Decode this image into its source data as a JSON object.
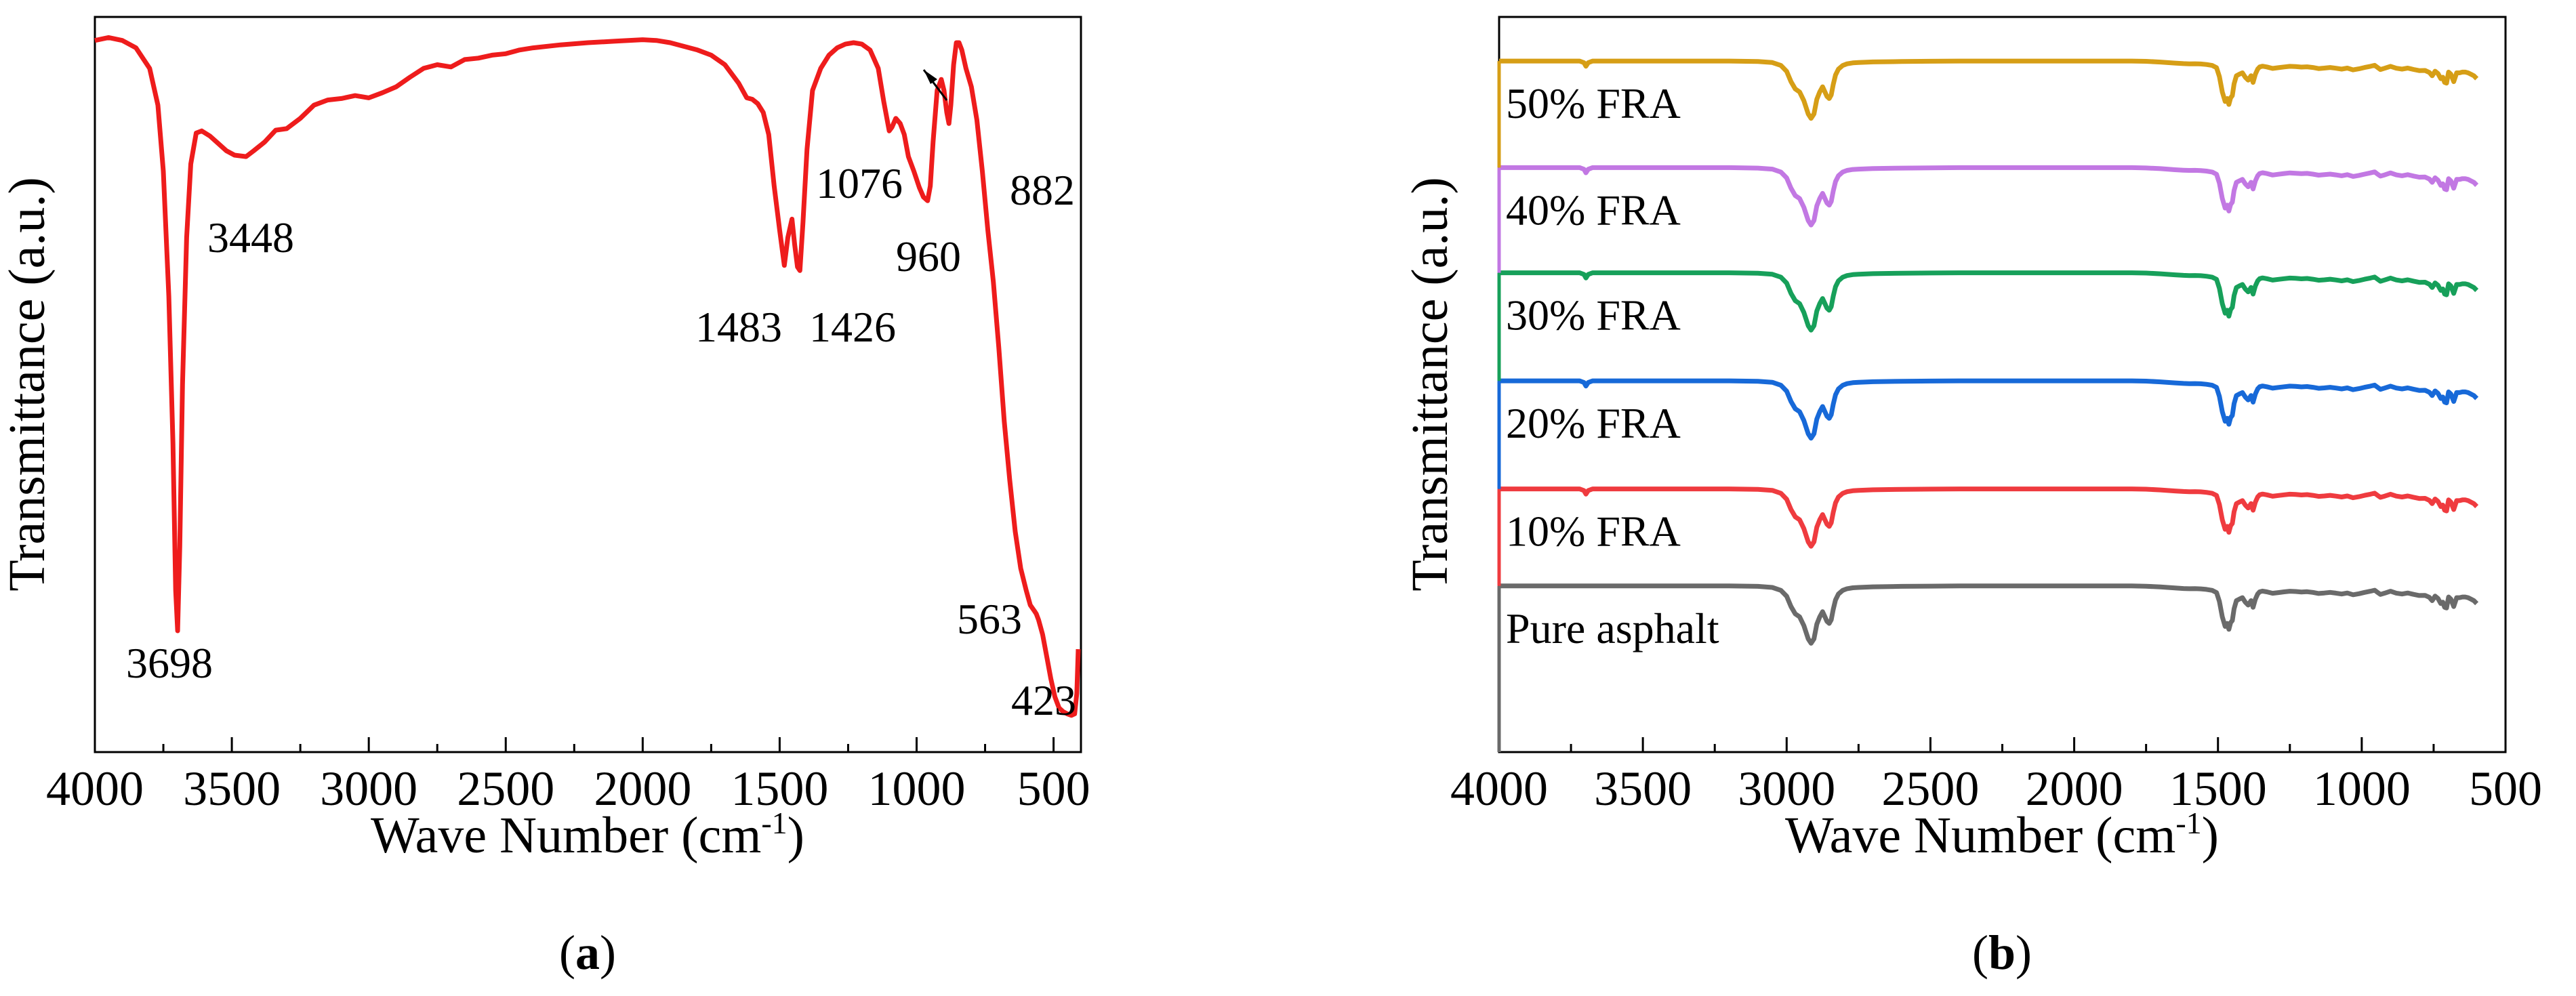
{
  "chart_data": [
    {
      "panel": "a",
      "type": "line",
      "caption": "(a)",
      "caption_letter": "a",
      "xlabel": "Wave Number (cm",
      "xlabel_sup": "-1",
      "xlabel_close": ")",
      "ylabel": "Transmittance (a.u.)",
      "xlim": [
        4000,
        400
      ],
      "ylim": [
        0,
        1
      ],
      "x_ticks": [
        4000,
        3500,
        3000,
        2500,
        2000,
        1500,
        1000,
        500
      ],
      "x_tick_labels": [
        "4000",
        "3500",
        "3000",
        "2500",
        "2000",
        "1500",
        "1000",
        "500"
      ],
      "y_ticks_shown": false,
      "series": [
        {
          "name": "FRA",
          "color": "#ee1c1c",
          "x": [
            4000,
            3950,
            3900,
            3850,
            3800,
            3770,
            3750,
            3730,
            3715,
            3705,
            3698,
            3690,
            3680,
            3665,
            3650,
            3630,
            3610,
            3580,
            3550,
            3520,
            3490,
            3448,
            3420,
            3380,
            3340,
            3300,
            3250,
            3200,
            3150,
            3100,
            3050,
            3000,
            2950,
            2900,
            2850,
            2800,
            2750,
            2700,
            2650,
            2600,
            2550,
            2500,
            2450,
            2400,
            2300,
            2200,
            2100,
            2000,
            1950,
            1900,
            1850,
            1800,
            1750,
            1700,
            1650,
            1620,
            1600,
            1580,
            1560,
            1540,
            1520,
            1500,
            1483,
            1470,
            1455,
            1445,
            1435,
            1426,
            1415,
            1400,
            1380,
            1350,
            1320,
            1290,
            1260,
            1230,
            1200,
            1170,
            1140,
            1120,
            1100,
            1090,
            1076,
            1060,
            1045,
            1030,
            1010,
            990,
            975,
            960,
            950,
            940,
            925,
            910,
            900,
            890,
            882,
            875,
            865,
            855,
            845,
            835,
            820,
            800,
            780,
            760,
            740,
            720,
            700,
            680,
            660,
            640,
            620,
            600,
            585,
            570,
            563,
            555,
            540,
            525,
            510,
            495,
            480,
            465,
            450,
            435,
            423,
            415,
            410
          ],
          "y": [
            0.968,
            0.972,
            0.968,
            0.958,
            0.93,
            0.88,
            0.79,
            0.62,
            0.42,
            0.22,
            0.165,
            0.28,
            0.5,
            0.7,
            0.8,
            0.842,
            0.845,
            0.838,
            0.828,
            0.818,
            0.812,
            0.81,
            0.818,
            0.83,
            0.846,
            0.848,
            0.862,
            0.88,
            0.887,
            0.889,
            0.893,
            0.89,
            0.897,
            0.905,
            0.918,
            0.93,
            0.935,
            0.932,
            0.942,
            0.944,
            0.948,
            0.95,
            0.955,
            0.958,
            0.962,
            0.965,
            0.967,
            0.969,
            0.968,
            0.965,
            0.96,
            0.955,
            0.948,
            0.935,
            0.91,
            0.89,
            0.888,
            0.882,
            0.87,
            0.84,
            0.77,
            0.71,
            0.662,
            0.7,
            0.725,
            0.69,
            0.66,
            0.655,
            0.72,
            0.82,
            0.9,
            0.93,
            0.948,
            0.958,
            0.963,
            0.965,
            0.963,
            0.955,
            0.93,
            0.885,
            0.845,
            0.85,
            0.862,
            0.855,
            0.84,
            0.81,
            0.79,
            0.768,
            0.755,
            0.75,
            0.77,
            0.83,
            0.9,
            0.915,
            0.9,
            0.87,
            0.855,
            0.88,
            0.935,
            0.965,
            0.965,
            0.955,
            0.93,
            0.905,
            0.86,
            0.79,
            0.71,
            0.64,
            0.55,
            0.45,
            0.37,
            0.3,
            0.25,
            0.22,
            0.2,
            0.192,
            0.188,
            0.18,
            0.16,
            0.13,
            0.1,
            0.075,
            0.06,
            0.055,
            0.052,
            0.05,
            0.052,
            0.08,
            0.14
          ]
        }
      ],
      "annotations": [
        {
          "text": "3698"
        },
        {
          "text": "3448"
        },
        {
          "text": "1483"
        },
        {
          "text": "1426"
        },
        {
          "text": "1076"
        },
        {
          "text": "960"
        },
        {
          "text": "882"
        },
        {
          "text": "563"
        },
        {
          "text": "423"
        }
      ]
    },
    {
      "panel": "b",
      "type": "line",
      "caption": "(b)",
      "caption_letter": "b",
      "xlabel": "Wave Number (cm",
      "xlabel_sup": "-1",
      "xlabel_close": ")",
      "ylabel": "Transmittance (a.u.)",
      "xlim": [
        4000,
        500
      ],
      "ylim": [
        0,
        1
      ],
      "x_ticks": [
        4000,
        3500,
        3000,
        2500,
        2000,
        1500,
        1000,
        500
      ],
      "x_tick_labels": [
        "4000",
        "3500",
        "3000",
        "2500",
        "2000",
        "1500",
        "1000",
        "500"
      ],
      "y_ticks_shown": false,
      "profile_x": [
        4000,
        3900,
        3800,
        3720,
        3705,
        3698,
        3690,
        3675,
        3600,
        3500,
        3400,
        3300,
        3200,
        3100,
        3050,
        3020,
        3000,
        2985,
        2970,
        2955,
        2940,
        2925,
        2915,
        2905,
        2895,
        2885,
        2875,
        2868,
        2860,
        2852,
        2845,
        2838,
        2830,
        2820,
        2805,
        2790,
        2770,
        2750,
        2700,
        2600,
        2500,
        2400,
        2300,
        2200,
        2100,
        2000,
        1900,
        1800,
        1750,
        1700,
        1650,
        1620,
        1600,
        1580,
        1560,
        1540,
        1520,
        1505,
        1495,
        1485,
        1475,
        1468,
        1462,
        1456,
        1450,
        1444,
        1436,
        1426,
        1415,
        1405,
        1395,
        1385,
        1378,
        1370,
        1362,
        1355,
        1345,
        1330,
        1310,
        1290,
        1270,
        1250,
        1230,
        1210,
        1190,
        1170,
        1150,
        1130,
        1110,
        1090,
        1070,
        1050,
        1030,
        1010,
        990,
        970,
        955,
        945,
        935,
        920,
        900,
        880,
        860,
        840,
        820,
        800,
        780,
        765,
        755,
        745,
        735,
        725,
        718,
        712,
        705,
        698,
        690,
        680,
        670,
        660,
        650,
        640,
        630,
        620,
        610,
        600
      ],
      "profile_y": [
        0,
        0,
        0,
        0,
        -0.22,
        -0.7,
        -0.22,
        0,
        0,
        0,
        0,
        0,
        0,
        -0.06,
        -0.2,
        -0.6,
        -1.4,
        -2.8,
        -3.8,
        -4.2,
        -5.4,
        -7.2,
        -7.8,
        -7.2,
        -5.2,
        -4.2,
        -3.5,
        -4.1,
        -4.8,
        -5.1,
        -4.6,
        -3.2,
        -1.9,
        -1.1,
        -0.6,
        -0.38,
        -0.25,
        -0.2,
        -0.12,
        -0.06,
        -0.03,
        0,
        0,
        0,
        0,
        0,
        0,
        0,
        -0.04,
        -0.14,
        -0.28,
        -0.35,
        -0.38,
        -0.37,
        -0.4,
        -0.47,
        -0.6,
        -0.9,
        -2.1,
        -4.2,
        -5.5,
        -5.1,
        -5.9,
        -5.0,
        -4.7,
        -3.1,
        -2.0,
        -1.8,
        -1.6,
        -2.2,
        -2.6,
        -2.0,
        -2.9,
        -1.8,
        -1.1,
        -0.8,
        -0.7,
        -0.8,
        -1.0,
        -0.9,
        -0.8,
        -0.72,
        -0.76,
        -0.82,
        -0.78,
        -0.88,
        -1.02,
        -0.96,
        -0.88,
        -0.98,
        -1.1,
        -0.96,
        -1.2,
        -1.06,
        -0.88,
        -0.72,
        -0.58,
        -0.88,
        -1.15,
        -0.98,
        -0.72,
        -0.98,
        -1.1,
        -0.96,
        -1.14,
        -1.3,
        -1.28,
        -1.55,
        -2.0,
        -1.38,
        -1.7,
        -2.4,
        -2.2,
        -2.9,
        -3.0,
        -1.5,
        -1.8,
        -2.8,
        -1.6,
        -1.6,
        -1.5,
        -1.5,
        -1.6,
        -1.8,
        -2.0,
        -2.4
      ],
      "profile_units": "percent of panel height below each baseline",
      "series": [
        {
          "name": "Pure asphalt",
          "color": "#6a6a6a",
          "baseline": 0.226,
          "oh_peak": false
        },
        {
          "name": "10% FRA",
          "color": "#ef3b3f",
          "baseline": 0.358,
          "oh_peak": true
        },
        {
          "name": "20% FRA",
          "color": "#1769d8",
          "baseline": 0.505,
          "oh_peak": true
        },
        {
          "name": "30% FRA",
          "color": "#17a05a",
          "baseline": 0.652,
          "oh_peak": true
        },
        {
          "name": "40% FRA",
          "color": "#c278e3",
          "baseline": 0.795,
          "oh_peak": true
        },
        {
          "name": "50% FRA",
          "color": "#d69e16",
          "baseline": 0.94,
          "oh_peak": true
        }
      ]
    }
  ]
}
